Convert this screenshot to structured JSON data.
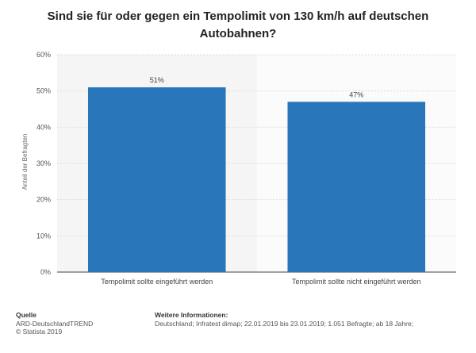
{
  "chart_data": {
    "type": "bar",
    "title": "Sind sie für oder gegen ein Tempolimit von 130 km/h auf deutschen Autobahnen?",
    "categories": [
      "Tempolimit sollte eingeführt werden",
      "Tempolimit sollte nicht eingeführt werden"
    ],
    "values": [
      51,
      47
    ],
    "data_labels": [
      "51%",
      "47%"
    ],
    "ylabel": "Anteil der Befragten",
    "ylim": [
      0,
      60
    ],
    "yticks": [
      0,
      10,
      20,
      30,
      40,
      50,
      60
    ],
    "ytick_labels": [
      "0%",
      "10%",
      "20%",
      "30%",
      "40%",
      "50%",
      "60%"
    ],
    "grid": true,
    "bar_color": "#2a76ba"
  },
  "footer": {
    "source_heading": "Quelle",
    "source_line1": "ARD-DeutschlandTREND",
    "source_line2": "© Statista 2019",
    "info_heading": "Weitere Informationen:",
    "info_text": "Deutschland; Infratest dimap; 22.01.2019 bis 23.01.2019; 1.051 Befragte; ab 18 Jahre;"
  }
}
